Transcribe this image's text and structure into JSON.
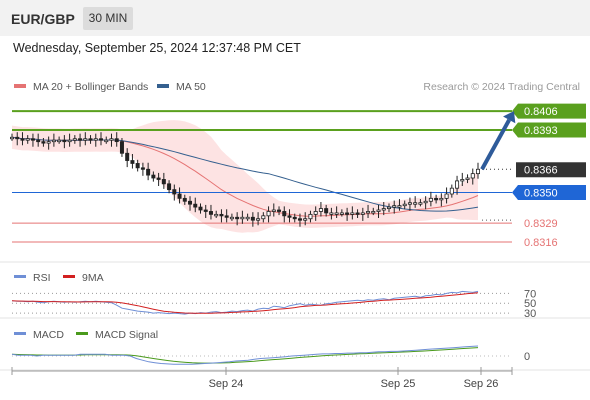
{
  "header": {
    "pair": "EUR/GBP",
    "timeframe": "30 MIN",
    "datetime": "Wednesday, September 25, 2024 12:37:48 PM CET"
  },
  "colors": {
    "ma20": "#e57373",
    "bollinger_fill": "#fcdcdc",
    "ma50": "#35608f",
    "resistance": "#5aa01e",
    "current_price": "#333333",
    "pivot": "#1f66d6",
    "support": "#e57373",
    "arrow": "#2e5b9a",
    "rsi": "#6f8fd6",
    "rsi_ma": "#d22020",
    "macd": "#6f8fd6",
    "macd_signal": "#4a9a1c"
  },
  "chart_data": [
    {
      "type": "candlestick",
      "legend": [
        {
          "label": "MA 20 + Bollinger Bands",
          "color": "#e57373"
        },
        {
          "label": "MA 50",
          "color": "#35608f"
        }
      ],
      "watermark": "Research © 2024 Trading Central",
      "ylim": [
        0.8305,
        0.8415
      ],
      "x_ticks": [
        "Sep 24",
        "Sep 25",
        "Sep 26"
      ],
      "close_series": [
        0.8388,
        0.8387,
        0.8386,
        0.8387,
        0.8386,
        0.8385,
        0.8384,
        0.8385,
        0.8386,
        0.8386,
        0.8385,
        0.8386,
        0.8387,
        0.8386,
        0.8387,
        0.8386,
        0.8387,
        0.8386,
        0.8386,
        0.8387,
        0.8385,
        0.8377,
        0.8372,
        0.837,
        0.8367,
        0.8366,
        0.8362,
        0.836,
        0.8359,
        0.8356,
        0.8352,
        0.8349,
        0.8346,
        0.8344,
        0.8342,
        0.834,
        0.8338,
        0.8337,
        0.8335,
        0.8335,
        0.8334,
        0.8333,
        0.8333,
        0.8332,
        0.8333,
        0.8333,
        0.8331,
        0.8332,
        0.8334,
        0.8337,
        0.8338,
        0.8337,
        0.8334,
        0.8333,
        0.8332,
        0.8331,
        0.8332,
        0.8335,
        0.8337,
        0.8339,
        0.8336,
        0.8336,
        0.8336,
        0.8336,
        0.8335,
        0.8336,
        0.8335,
        0.8336,
        0.8337,
        0.8337,
        0.8338,
        0.8339,
        0.834,
        0.8341,
        0.8341,
        0.8342,
        0.8343,
        0.8343,
        0.8343,
        0.8344,
        0.8346,
        0.8345,
        0.8346,
        0.8349,
        0.8353,
        0.8358,
        0.8359,
        0.836,
        0.8363,
        0.8366
      ],
      "projection": {
        "from": 0.8366,
        "to": 0.8406
      },
      "levels": [
        {
          "label": "0.8406",
          "value": 0.8406,
          "kind": "resistance"
        },
        {
          "label": "0.8393",
          "value": 0.8393,
          "kind": "resistance"
        },
        {
          "label": "0.8366",
          "value": 0.8366,
          "kind": "current"
        },
        {
          "label": "0.8350",
          "value": 0.835,
          "kind": "pivot"
        },
        {
          "label": "0.8329",
          "value": 0.8329,
          "kind": "support"
        },
        {
          "label": "0.8316",
          "value": 0.8316,
          "kind": "support"
        }
      ]
    },
    {
      "type": "line",
      "legend": [
        {
          "label": "RSI",
          "color": "#6f8fd6"
        },
        {
          "label": "9MA",
          "color": "#d22020"
        }
      ],
      "ylim": [
        20,
        85
      ],
      "levels": [
        {
          "label": "70",
          "value": 70
        },
        {
          "label": "50",
          "value": 50
        },
        {
          "label": "30",
          "value": 30
        }
      ],
      "rsi_series": [
        55,
        54,
        54,
        53,
        54,
        52,
        51,
        53,
        54,
        53,
        52,
        53,
        52,
        53,
        54,
        53,
        54,
        53,
        52,
        51,
        46,
        40,
        38,
        36,
        34,
        33,
        32,
        30,
        31,
        30,
        29,
        30,
        29,
        28,
        30,
        29,
        31,
        30,
        32,
        33,
        31,
        32,
        34,
        33,
        35,
        36,
        34,
        38,
        40,
        39,
        44,
        43,
        41,
        45,
        47,
        49,
        46,
        48,
        47,
        46,
        49,
        50,
        52,
        53,
        54,
        55,
        56,
        55,
        57,
        56,
        58,
        59,
        57,
        60,
        61,
        62,
        63,
        64,
        62,
        65,
        66,
        68,
        67,
        70,
        72,
        71,
        74,
        73,
        72,
        74
      ]
    },
    {
      "type": "line",
      "legend": [
        {
          "label": "MACD",
          "color": "#6f8fd6"
        },
        {
          "label": "MACD Signal",
          "color": "#4a9a1c"
        }
      ],
      "levels": [
        {
          "label": "0",
          "value": 0
        }
      ],
      "macd_series": [
        0.2,
        0.1,
        0.1,
        0.1,
        0.0,
        0.1,
        0.1,
        0.1,
        0.1,
        0.1,
        0.1,
        0.2,
        0.2,
        0.2,
        0.2,
        0.2,
        0.1,
        0.1,
        0.1,
        0.0,
        -0.3,
        -0.5,
        -0.7,
        -0.8,
        -0.9,
        -0.95,
        -1.0,
        -1.0,
        -1.0,
        -1.0,
        -0.95,
        -0.9,
        -0.85,
        -0.8,
        -0.75,
        -0.7,
        -0.6,
        -0.55,
        -0.5,
        -0.4,
        -0.3,
        -0.25,
        -0.2,
        -0.15,
        -0.1,
        0.0,
        0.05,
        0.1,
        0.15,
        0.2,
        0.25,
        0.25,
        0.3,
        0.3,
        0.35,
        0.35,
        0.4,
        0.4,
        0.45,
        0.5,
        0.5,
        0.55,
        0.55,
        0.6,
        0.65,
        0.7,
        0.75,
        0.8,
        0.85,
        0.9,
        0.95,
        1.0,
        1.05,
        1.1,
        1.15,
        1.2
      ]
    }
  ]
}
